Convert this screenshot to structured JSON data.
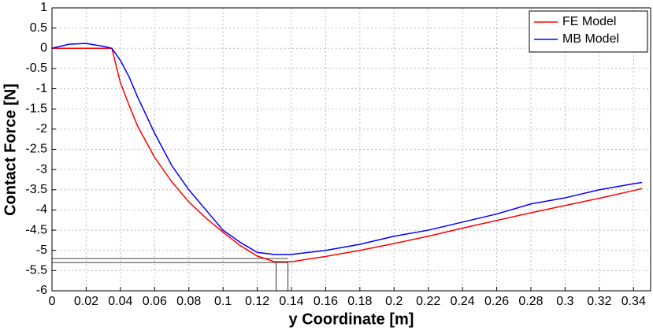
{
  "chart_data": {
    "type": "line",
    "x_label": "y Coordinate [m]",
    "y_label": "Contact Force [N]",
    "x": [
      0,
      0.01,
      0.02,
      0.03,
      0.035,
      0.04,
      0.045,
      0.05,
      0.06,
      0.07,
      0.08,
      0.09,
      0.1,
      0.11,
      0.12,
      0.13,
      0.14,
      0.16,
      0.18,
      0.2,
      0.22,
      0.24,
      0.26,
      0.28,
      0.3,
      0.32,
      0.34,
      0.345
    ],
    "series": [
      {
        "name": "FE Model",
        "color": "#ff0000",
        "values": [
          0,
          0,
          0,
          0,
          0,
          -0.85,
          -1.4,
          -1.92,
          -2.7,
          -3.3,
          -3.8,
          -4.2,
          -4.55,
          -4.88,
          -5.14,
          -5.28,
          -5.28,
          -5.15,
          -5.0,
          -4.83,
          -4.65,
          -4.45,
          -4.26,
          -4.07,
          -3.89,
          -3.71,
          -3.52,
          -3.47
        ]
      },
      {
        "name": "MB Model",
        "color": "#0000ff",
        "values": [
          0,
          0.1,
          0.12,
          0.05,
          0,
          -0.3,
          -0.7,
          -1.2,
          -2.1,
          -2.9,
          -3.5,
          -4.0,
          -4.5,
          -4.8,
          -5.05,
          -5.1,
          -5.1,
          -5.0,
          -4.85,
          -4.65,
          -4.5,
          -4.3,
          -4.1,
          -3.85,
          -3.7,
          -3.5,
          -3.35,
          -3.32
        ]
      }
    ],
    "reference_hlines": [
      -5.2,
      -5.3
    ],
    "reference_vlines": [
      0.131,
      0.138
    ],
    "xlim": [
      0,
      0.35
    ],
    "ylim": [
      -6,
      1
    ],
    "xticks": [
      0,
      0.02,
      0.04,
      0.06,
      0.08,
      0.1,
      0.12,
      0.14,
      0.16,
      0.18,
      0.2,
      0.22,
      0.24,
      0.26,
      0.28,
      0.3,
      0.32,
      0.34
    ],
    "yticks": [
      1,
      0.5,
      0,
      -0.5,
      -1,
      -1.5,
      -2,
      -2.5,
      -3,
      -3.5,
      -4,
      -4.5,
      -5,
      -5.5,
      -6
    ],
    "grid": true,
    "legend_position": "upper-right"
  }
}
